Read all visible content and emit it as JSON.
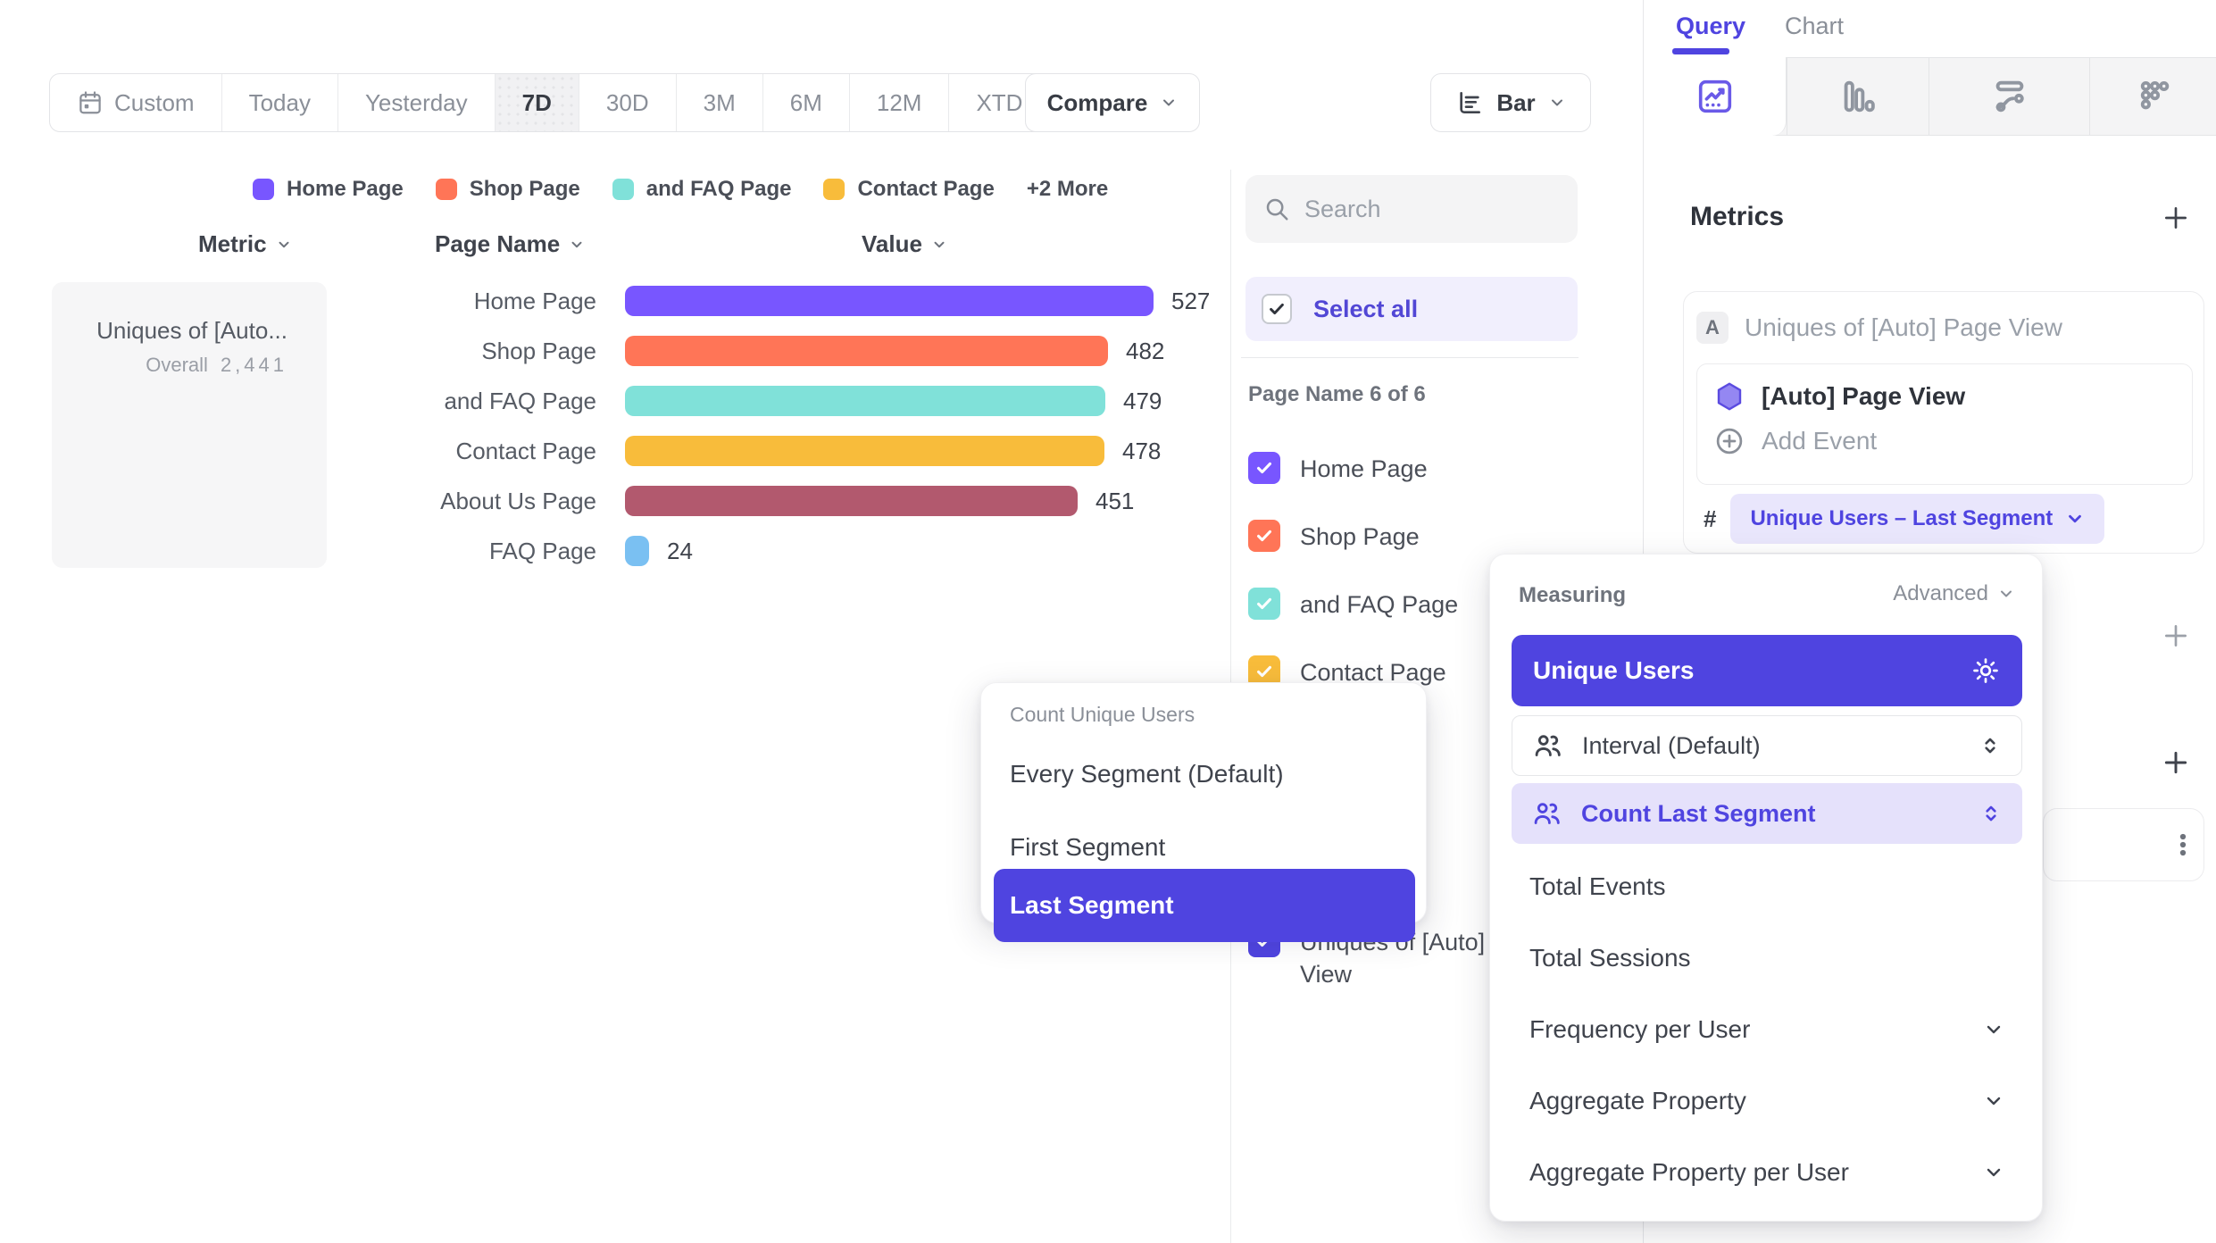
{
  "toolbar": {
    "date_ranges": [
      "Custom",
      "Today",
      "Yesterday",
      "7D",
      "30D",
      "3M",
      "6M",
      "12M",
      "XTD"
    ],
    "selected_range": "7D",
    "compare_label": "Compare",
    "chart_style_label": "Bar"
  },
  "legend": {
    "items": [
      {
        "label": "Home Page",
        "color": "#7856FF"
      },
      {
        "label": "Shop Page",
        "color": "#FF7557"
      },
      {
        "label": "and FAQ Page",
        "color": "#80E1D9"
      },
      {
        "label": "Contact Page",
        "color": "#F8BC3B"
      }
    ],
    "more_label": "+2 More"
  },
  "table": {
    "headers": [
      "Metric",
      "Page Name",
      "Value"
    ]
  },
  "metric_card": {
    "title": "Uniques of [Auto...",
    "overall_label": "Overall",
    "overall_value": "2,441"
  },
  "chart_data": {
    "type": "bar",
    "orientation": "horizontal",
    "title": "Uniques of [Auto] Page View",
    "categories": [
      "Home Page",
      "Shop Page",
      "and FAQ Page",
      "Contact Page",
      "About Us Page",
      "FAQ Page"
    ],
    "values": [
      527,
      482,
      479,
      478,
      451,
      24
    ],
    "colors": [
      "#7856FF",
      "#FF7557",
      "#80E1D9",
      "#F8BC3B",
      "#B2596E",
      "#7AC0F2"
    ],
    "overall_total": 2441,
    "xlim": [
      0,
      527
    ],
    "value_labels_shown": true
  },
  "filter_panel": {
    "search_placeholder": "Search",
    "select_all_label": "Select all",
    "group_label": "Page Name 6 of 6",
    "items": [
      {
        "label": "Home Page",
        "checked": true,
        "color": "#7856FF"
      },
      {
        "label": "Shop Page",
        "checked": true,
        "color": "#FF7557"
      },
      {
        "label": "and FAQ Page",
        "checked": true,
        "color": "#80E1D9"
      },
      {
        "label": "Contact Page",
        "checked": true,
        "color": "#F8BC3B"
      }
    ],
    "metric_item": {
      "label": "Uniques of [Auto] Page View",
      "checked": true,
      "color": "#4F44E0"
    }
  },
  "segment_dropdown": {
    "title": "Count Unique Users",
    "options": [
      "Every Segment (Default)",
      "First Segment",
      "Last Segment"
    ],
    "selected": "Last Segment"
  },
  "measuring_dropdown": {
    "title": "Measuring",
    "advanced_label": "Advanced",
    "selected_option": "Unique Users",
    "interval_option": "Interval (Default)",
    "count_option": "Count Last Segment",
    "options": [
      "Total Events",
      "Total Sessions",
      "Frequency per User",
      "Aggregate Property",
      "Aggregate Property per User"
    ]
  },
  "query_panel": {
    "tabs": [
      "Query",
      "Chart"
    ],
    "active_tab": "Query",
    "chart_type_tabs": [
      "insights",
      "funnel",
      "flow",
      "retention"
    ],
    "metrics_header": "Metrics",
    "metric": {
      "badge": "A",
      "title": "Uniques of [Auto] Page View",
      "event_label": "[Auto] Page View",
      "add_event_label": "Add Event",
      "measure_prefix": "#",
      "measure_label": "Unique Users – Last Segment"
    }
  }
}
